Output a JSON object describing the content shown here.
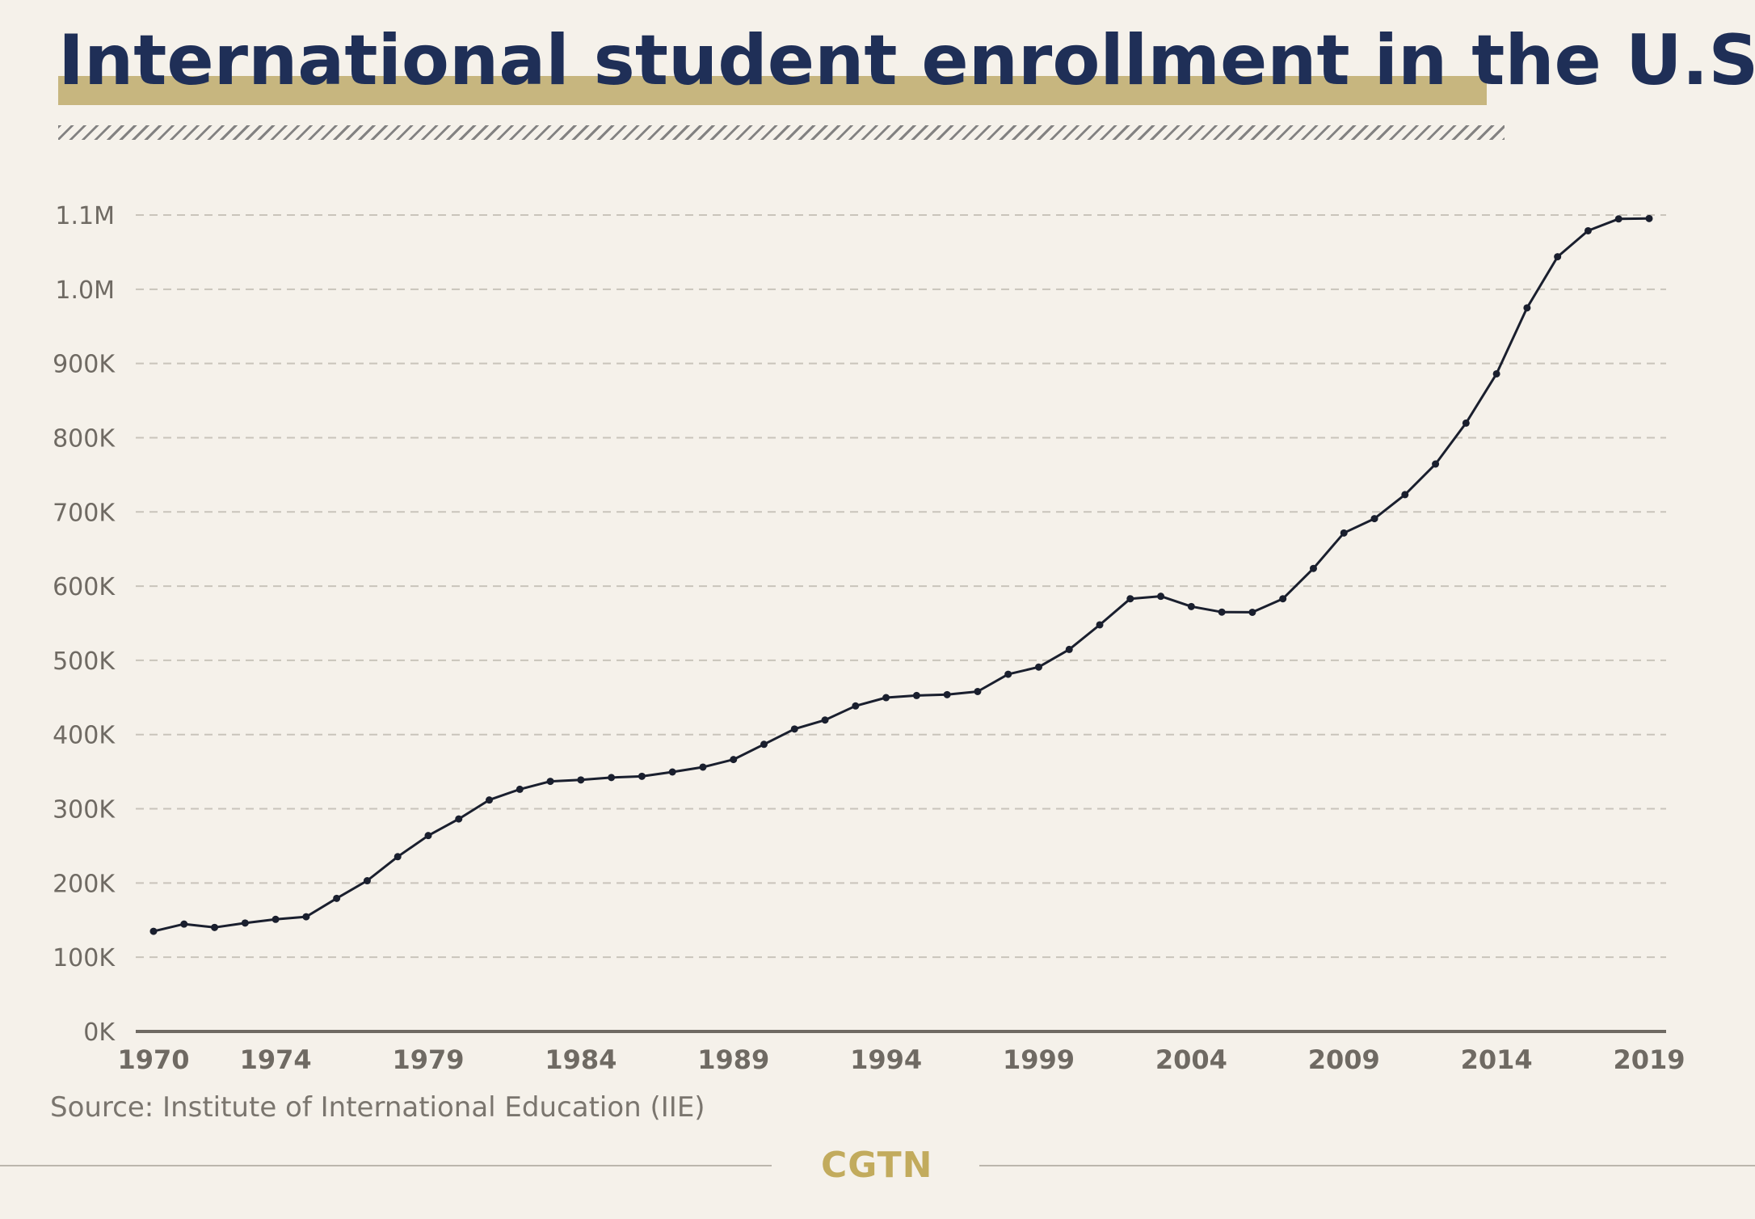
{
  "header": {
    "title": "International student enrollment in the U.S."
  },
  "footer": {
    "source": "Source: Institute of International Education (IIE)",
    "logo": "CGTN"
  },
  "colors": {
    "background": "#f5f1ea",
    "title": "#1f2f57",
    "title_highlight": "#c7b67f",
    "line": "#1a1f2e",
    "grid": "#c9c4bb",
    "logo": "#c2ab5d"
  },
  "chart_data": {
    "type": "line",
    "title": "International student enrollment in the U.S.",
    "xlabel": "",
    "ylabel": "",
    "ylim": [
      0,
      1100000
    ],
    "xlim": [
      1970,
      2019
    ],
    "grid": true,
    "x_ticks": [
      "1970",
      "1974",
      "1979",
      "1984",
      "1989",
      "1994",
      "1999",
      "2004",
      "2009",
      "2014",
      "2019"
    ],
    "y_ticks": [
      "0K",
      "100K",
      "200K",
      "300K",
      "400K",
      "500K",
      "600K",
      "700K",
      "800K",
      "900K",
      "1.0M",
      "1.1M"
    ],
    "x": [
      1970,
      1971,
      1972,
      1973,
      1974,
      1975,
      1976,
      1977,
      1978,
      1979,
      1980,
      1981,
      1982,
      1983,
      1984,
      1985,
      1986,
      1987,
      1988,
      1989,
      1990,
      1991,
      1992,
      1993,
      1994,
      1995,
      1996,
      1997,
      1998,
      1999,
      2000,
      2001,
      2002,
      2003,
      2004,
      2005,
      2006,
      2007,
      2008,
      2009,
      2010,
      2011,
      2012,
      2013,
      2014,
      2015,
      2016,
      2017,
      2018,
      2019
    ],
    "series": [
      {
        "values": [
          134959,
          144708,
          140126,
          146097,
          151066,
          154580,
          179340,
          203068,
          235509,
          263938,
          286343,
          311882,
          326299,
          336985,
          338894,
          342113,
          343777,
          349609,
          356187,
          366354,
          386851,
          407529,
          419585,
          438618,
          449749,
          452635,
          453787,
          457984,
          481280,
          490933,
          514723,
          547867,
          582996,
          586323,
          572509,
          565039,
          564766,
          582984,
          623805,
          671616,
          690923,
          723277,
          764495,
          819644,
          886052,
          974926,
          1043839,
          1078822,
          1094792,
          1095299
        ]
      }
    ]
  }
}
